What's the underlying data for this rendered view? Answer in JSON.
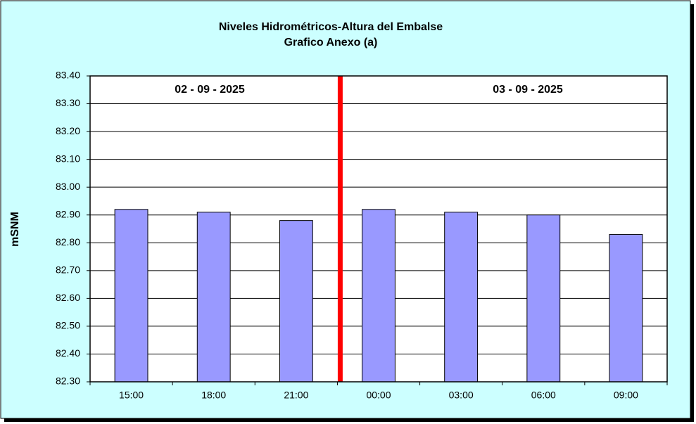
{
  "chart_data": {
    "type": "bar",
    "title": "Niveles Hidrométricos-Altura del Embalse",
    "subtitle": "Grafico Anexo (a)",
    "y_label": "mSNM",
    "annotations": [
      "02 - 09 - 2025",
      "03 - 09 - 2025"
    ],
    "categories": [
      "15:00",
      "18:00",
      "21:00",
      "00:00",
      "03:00",
      "06:00",
      "09:00"
    ],
    "values": [
      82.92,
      82.91,
      82.88,
      82.92,
      82.91,
      82.9,
      82.83
    ],
    "color": "#9999ff",
    "ylim": [
      82.3,
      83.4
    ],
    "yticks": [
      {
        "value": 82.3,
        "label": "82.30"
      },
      {
        "value": 82.4,
        "label": "82.40"
      },
      {
        "value": 82.5,
        "label": "82.50"
      },
      {
        "value": 82.6,
        "label": "82.60"
      },
      {
        "value": 82.7,
        "label": "82.70"
      },
      {
        "value": 82.8,
        "label": "82.80"
      },
      {
        "value": 82.9,
        "label": "82.90"
      },
      {
        "value": 83.0,
        "label": "83.00"
      },
      {
        "value": 83.1,
        "label": "83.10"
      },
      {
        "value": 83.2,
        "label": "83.20"
      },
      {
        "value": 83.3,
        "label": "83.30"
      },
      {
        "value": 83.4,
        "label": "83.40"
      }
    ],
    "grid": true
  }
}
